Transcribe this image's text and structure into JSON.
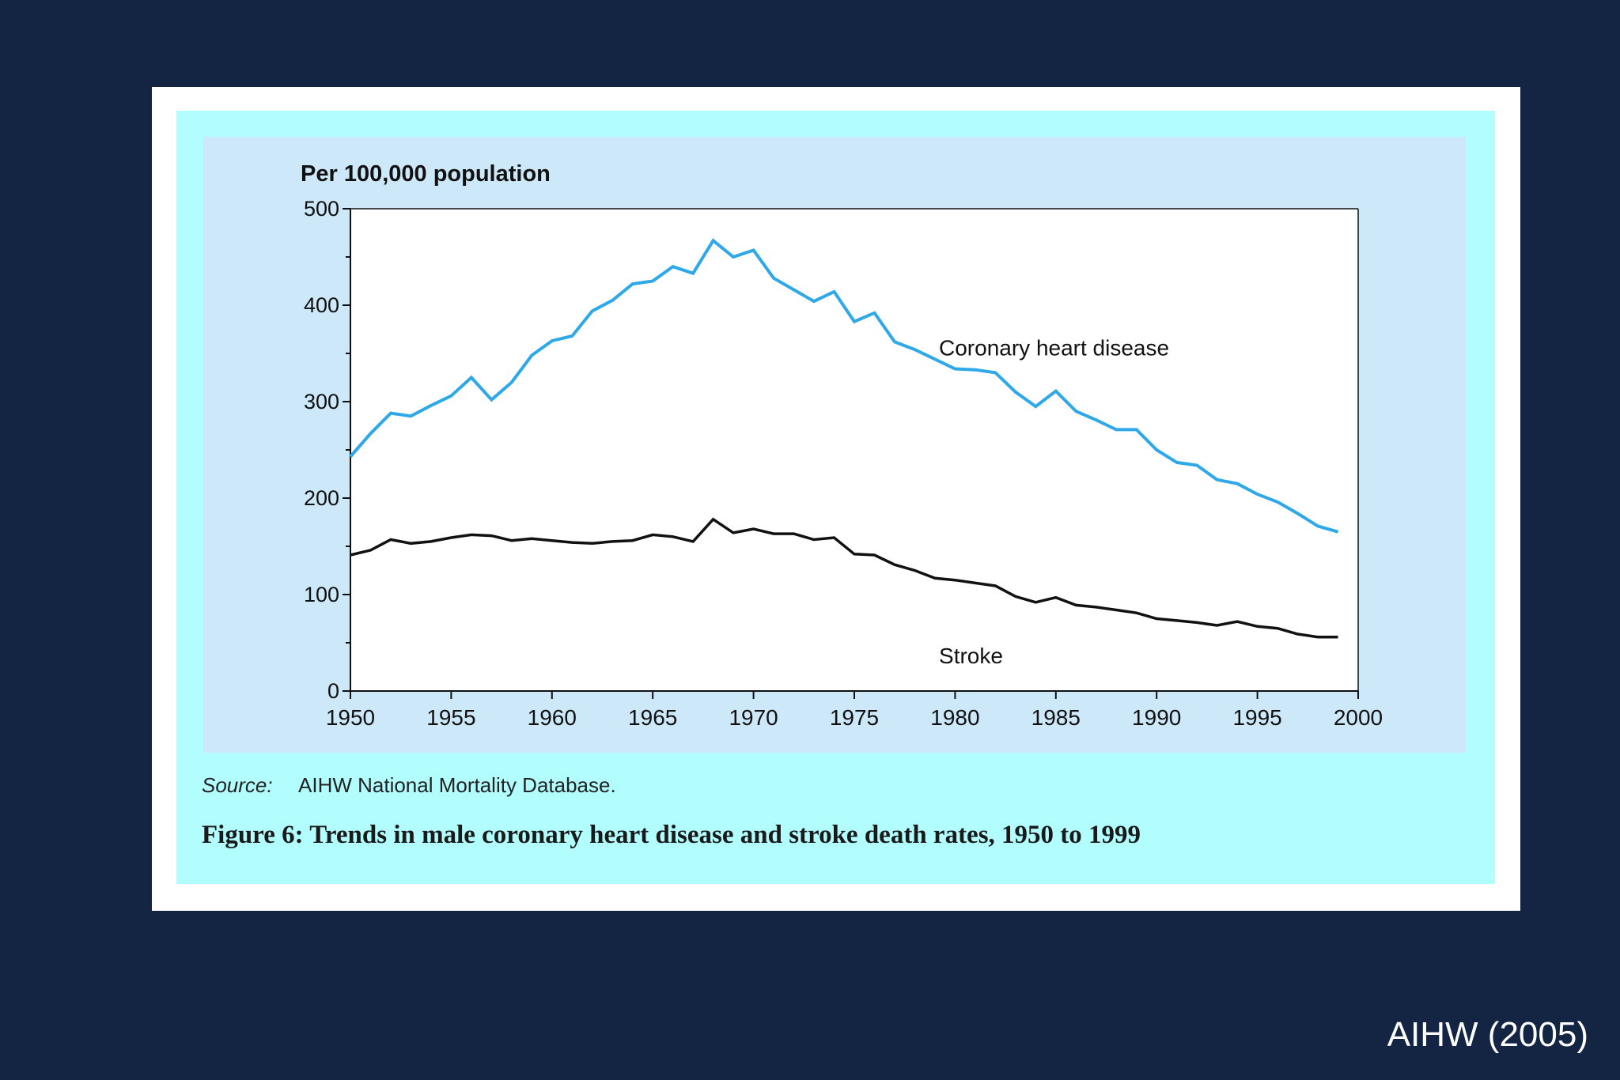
{
  "slide": {
    "credit": "AIHW (2005)"
  },
  "figure": {
    "source_label": "Source:",
    "source_text": "AIHW National Mortality Database.",
    "caption": "Figure 6: Trends in male coronary heart disease and stroke death rates, 1950 to 1999"
  },
  "colors": {
    "page_background": "#142543",
    "figure_background": "#b2feff",
    "chart_background": "#cde8f8",
    "coronary_line": "#2ea8e6",
    "stroke_line": "#111111"
  },
  "chart_data": {
    "type": "line",
    "title": "",
    "xlabel": "",
    "ylabel": "Per 100,000 population",
    "xlim": [
      1950,
      2000
    ],
    "ylim": [
      0,
      500
    ],
    "x_ticks": [
      "1950",
      "1955",
      "1960",
      "1965",
      "1970",
      "1975",
      "1980",
      "1985",
      "1990",
      "1995",
      "2000"
    ],
    "y_ticks": [
      "0",
      "100",
      "200",
      "300",
      "400",
      "500"
    ],
    "grid": false,
    "legend": "none (series labelled inline on plot)",
    "x": [
      1950,
      1951,
      1952,
      1953,
      1954,
      1955,
      1956,
      1957,
      1958,
      1959,
      1960,
      1961,
      1962,
      1963,
      1964,
      1965,
      1966,
      1967,
      1968,
      1969,
      1970,
      1971,
      1972,
      1973,
      1974,
      1975,
      1976,
      1977,
      1978,
      1979,
      1980,
      1981,
      1982,
      1983,
      1984,
      1985,
      1986,
      1987,
      1988,
      1989,
      1990,
      1991,
      1992,
      1993,
      1994,
      1995,
      1996,
      1997,
      1998,
      1999
    ],
    "series": [
      {
        "name": "Coronary heart disease",
        "values": [
          243,
          267,
          288,
          285,
          296,
          306,
          325,
          302,
          320,
          348,
          363,
          368,
          394,
          405,
          422,
          425,
          440,
          433,
          467,
          450,
          457,
          428,
          416,
          404,
          414,
          383,
          392,
          362,
          354,
          344,
          334,
          333,
          330,
          310,
          295,
          311,
          290,
          281,
          271,
          271,
          250,
          237,
          234,
          219,
          215,
          204,
          196,
          184,
          171,
          165
        ]
      },
      {
        "name": "Stroke",
        "values": [
          141,
          146,
          157,
          153,
          155,
          159,
          162,
          161,
          156,
          158,
          156,
          154,
          153,
          155,
          156,
          162,
          160,
          155,
          178,
          164,
          168,
          163,
          163,
          157,
          159,
          142,
          141,
          131,
          125,
          117,
          115,
          112,
          109,
          98,
          92,
          97,
          89,
          87,
          84,
          81,
          75,
          73,
          71,
          68,
          72,
          67,
          65,
          59,
          56,
          56
        ]
      }
    ]
  }
}
